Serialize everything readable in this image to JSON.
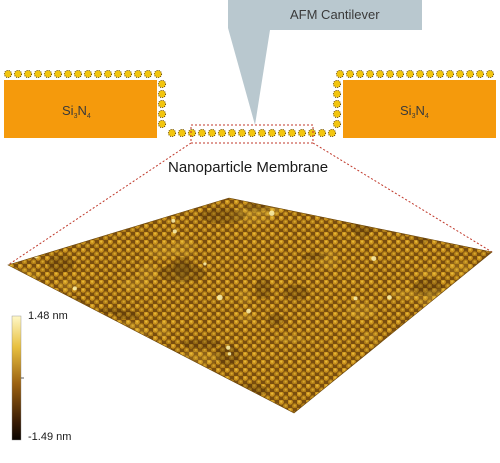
{
  "labels": {
    "cantilever": "AFM Cantilever",
    "membrane": "Nanoparticle Membrane",
    "substrate_base": "Si",
    "substrate_sub1": "3",
    "substrate_mid": "N",
    "substrate_sub2": "4"
  },
  "colorbar": {
    "max_label": "1.48 nm",
    "min_label": "-1.49 nm"
  },
  "colors": {
    "substrate": "#f59a0c",
    "nanoparticle": "#f2c50f",
    "cantilever": "#b9c8cf",
    "dashed_box": "#c0392b"
  }
}
